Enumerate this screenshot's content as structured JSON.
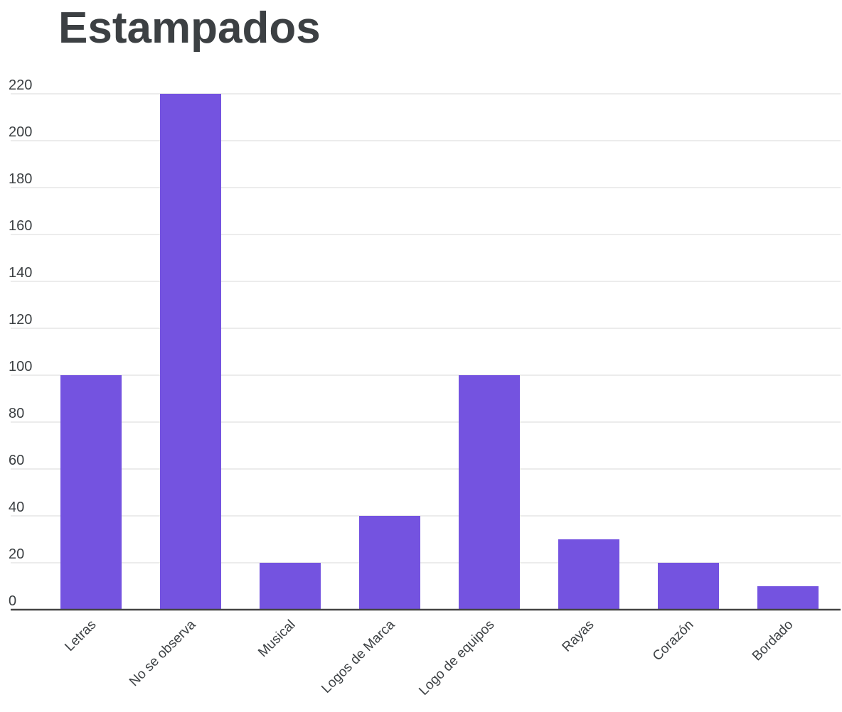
{
  "chart_data": {
    "type": "bar",
    "title": "Estampados",
    "categories": [
      "Letras",
      "No se observa",
      "Musical",
      "Logos de Marca",
      "Logo de equipos",
      "Rayas",
      "Corazón",
      "Bordado"
    ],
    "series": [
      {
        "values": [
          100,
          220,
          20,
          40,
          100,
          30,
          20,
          10
        ]
      }
    ],
    "xlabel": "",
    "ylabel": "",
    "ylim": [
      0,
      220
    ],
    "yticks": [
      0,
      20,
      40,
      60,
      80,
      100,
      120,
      140,
      160,
      180,
      200,
      220
    ],
    "grid": true,
    "legend": "none",
    "colors": {
      "bar": "#7453e0",
      "title": "#3c4043",
      "text": "#3c4043",
      "grid": "#d9d9d9",
      "axis": "#444444"
    }
  }
}
